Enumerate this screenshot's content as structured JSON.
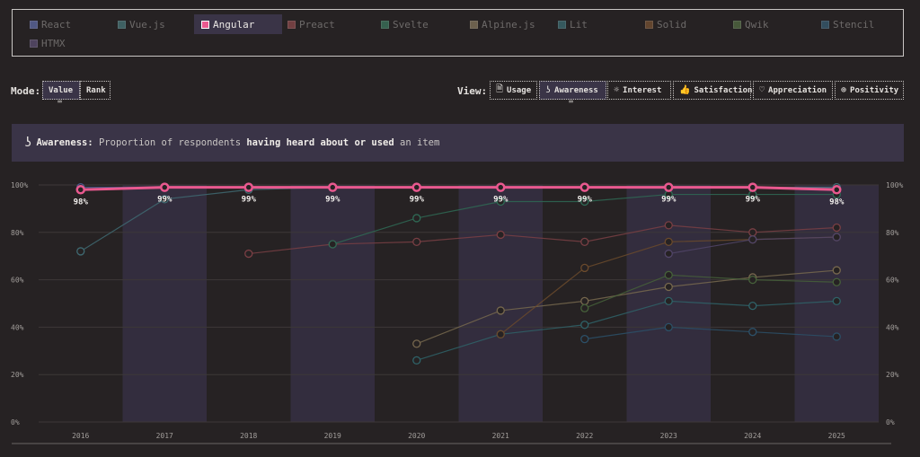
{
  "legend": {
    "items": [
      {
        "label": "React",
        "color": "#6d7cc4",
        "active": false
      },
      {
        "label": "Vue.js",
        "color": "#4f8a8c",
        "active": false
      },
      {
        "label": "Angular",
        "color": "#e9598f",
        "active": true
      },
      {
        "label": "Preact",
        "color": "#a55356",
        "active": false
      },
      {
        "label": "Svelte",
        "color": "#3f8a6b",
        "active": false
      },
      {
        "label": "Alpine.js",
        "color": "#9b8a6a",
        "active": false
      },
      {
        "label": "Lit",
        "color": "#3f7f86",
        "active": false
      },
      {
        "label": "Solid",
        "color": "#8a5d36",
        "active": false
      },
      {
        "label": "Qwik",
        "color": "#5d7f4a",
        "active": false
      },
      {
        "label": "Stencil",
        "color": "#3a6a86",
        "active": false
      },
      {
        "label": "HTMX",
        "color": "#6a5a86",
        "active": false
      }
    ]
  },
  "controls": {
    "mode_label": "Mode:",
    "mode_value": "Value",
    "mode_rank": "Rank",
    "view_label": "View:",
    "views": [
      {
        "label": "Usage",
        "icon": "document-icon",
        "glyph": "🗎"
      },
      {
        "label": "Awareness",
        "icon": "ear-icon",
        "glyph": "ʖ"
      },
      {
        "label": "Interest",
        "icon": "bulb-icon",
        "glyph": "☼"
      },
      {
        "label": "Satisfaction",
        "icon": "thumbs-up-icon",
        "glyph": "👍"
      },
      {
        "label": "Appreciation",
        "icon": "heart-icon",
        "glyph": "♡"
      },
      {
        "label": "Positivity",
        "icon": "plus-circle-icon",
        "glyph": "⊕"
      }
    ],
    "kbd_glyph": "⌨"
  },
  "description": {
    "label": "Awareness:",
    "pre": " Proportion of respondents ",
    "bold": "having heard about or used",
    "post": " an item"
  },
  "chart_data": {
    "type": "line",
    "x": [
      "2016",
      "2017",
      "2018",
      "2019",
      "2020",
      "2021",
      "2022",
      "2023",
      "2024",
      "2025"
    ],
    "y_ticks": [
      "0%",
      "20%",
      "40%",
      "60%",
      "80%",
      "100%"
    ],
    "ylim": [
      0,
      100
    ],
    "highlight": "Angular",
    "series": [
      {
        "name": "Angular",
        "color": "#e9598f",
        "values": [
          98,
          99,
          99,
          99,
          99,
          99,
          99,
          99,
          99,
          98
        ],
        "labels": [
          "98%",
          "99%",
          "99%",
          "99%",
          "99%",
          "99%",
          "99%",
          "99%",
          "99%",
          "98%"
        ]
      },
      {
        "name": "React",
        "color": "#4a5a8c",
        "values": [
          99,
          99,
          99,
          99,
          99,
          99,
          99,
          99,
          99,
          99
        ]
      },
      {
        "name": "Vue.js",
        "color": "#3f6a72",
        "values": [
          72,
          94,
          98,
          99,
          99,
          99,
          99,
          99,
          99,
          99
        ]
      },
      {
        "name": "Preact",
        "color": "#7a3f44",
        "values": [
          null,
          null,
          71,
          75,
          76,
          79,
          76,
          83,
          80,
          82
        ]
      },
      {
        "name": "Svelte",
        "color": "#2f6a55",
        "values": [
          null,
          null,
          null,
          75,
          86,
          93,
          93,
          96,
          96,
          96
        ]
      },
      {
        "name": "Alpine.js",
        "color": "#77684e",
        "values": [
          null,
          null,
          null,
          null,
          33,
          47,
          51,
          57,
          61,
          64
        ]
      },
      {
        "name": "Lit",
        "color": "#2f6369",
        "values": [
          null,
          null,
          null,
          null,
          26,
          37,
          41,
          51,
          49,
          51
        ]
      },
      {
        "name": "Solid",
        "color": "#6b4a2c",
        "values": [
          null,
          null,
          null,
          null,
          null,
          37,
          65,
          76,
          77,
          78
        ]
      },
      {
        "name": "Qwik",
        "color": "#46613a",
        "values": [
          null,
          null,
          null,
          null,
          null,
          null,
          48,
          62,
          60,
          59
        ]
      },
      {
        "name": "Stencil",
        "color": "#2c5068",
        "values": [
          null,
          null,
          null,
          null,
          null,
          null,
          35,
          40,
          38,
          36
        ]
      },
      {
        "name": "HTMX",
        "color": "#514568",
        "values": [
          null,
          null,
          null,
          null,
          null,
          null,
          null,
          71,
          77,
          78
        ]
      }
    ]
  }
}
